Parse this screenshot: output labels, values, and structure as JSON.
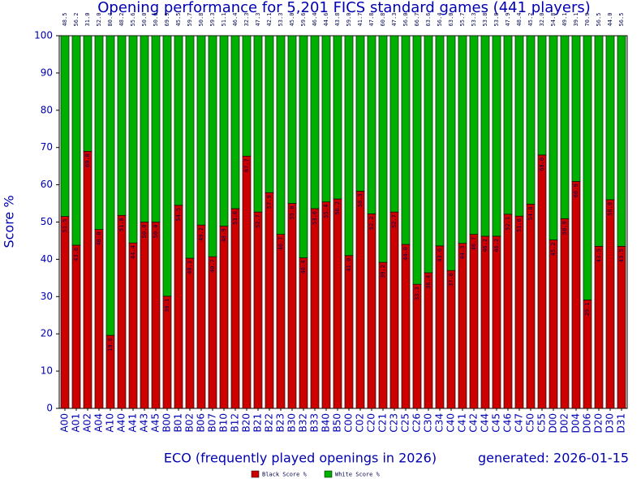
{
  "chart_data": {
    "type": "stacked_bar",
    "title": "Opening performance for 5,201 FICS standard games (441 players)",
    "y_label": "Score %",
    "x_label": "ECO (frequently played openings in 2026)",
    "note": "generated: 2026-01-15",
    "categories": [
      "A00",
      "A01",
      "A02",
      "A04",
      "A10",
      "A40",
      "A41",
      "A43",
      "A45",
      "B00",
      "B01",
      "B02",
      "B06",
      "B07",
      "B10",
      "B12",
      "B20",
      "B21",
      "B22",
      "B23",
      "B30",
      "B32",
      "B33",
      "B40",
      "B50",
      "C00",
      "C02",
      "C20",
      "C21",
      "C23",
      "C25",
      "C26",
      "C30",
      "C34",
      "C40",
      "C41",
      "C42",
      "C44",
      "C45",
      "C46",
      "C47",
      "C50",
      "C55",
      "D00",
      "D02",
      "D04",
      "D06",
      "D20",
      "D30",
      "D31"
    ],
    "series": [
      {
        "name": "Black Score %",
        "color": "#cc0000",
        "values": [
          51.5,
          43.8,
          69.0,
          48.0,
          19.6,
          51.8,
          44.4,
          50.0,
          50.0,
          30.1,
          54.5,
          40.3,
          49.2,
          40.7,
          48.9,
          53.6,
          67.7,
          52.7,
          57.9,
          46.7,
          55.0,
          40.4,
          53.6,
          55.4,
          56.2,
          41.0,
          58.3,
          52.2,
          39.2,
          52.7,
          44.0,
          33.3,
          36.4,
          43.6,
          37.0,
          44.3,
          46.7,
          46.2,
          46.2,
          52.1,
          51.6,
          54.8,
          68.0,
          45.2,
          50.9,
          60.9,
          29.1,
          43.5,
          56.0,
          43.5
        ],
        "value_labels": [
          "51.5",
          "43.8",
          "69.0",
          "48.0",
          "19.6",
          "51.8",
          "44.4",
          "50.0",
          "50.0",
          "30.1",
          "54.5",
          "40.3",
          "49.2",
          "40.7",
          "48.9",
          "53.6",
          "67.7",
          "52.7",
          "57.9",
          "46.7",
          "55.0",
          "40.4",
          "53.6",
          "55.4",
          "56.2",
          "41.0",
          "58.3",
          "52.2",
          "39.2",
          "52.7",
          "44.0",
          "33.3",
          "36.4",
          "43.6",
          "37.0",
          "44.3",
          "46.7",
          "46.2",
          "46.2",
          "52.1",
          "51.6",
          "54.8",
          "68.0",
          "45.2",
          "50.9",
          "60.9",
          "29.1",
          "43.5",
          "56.0",
          "43.5"
        ]
      },
      {
        "name": "White Score %",
        "color": "#00b000",
        "values": [
          48.5,
          56.2,
          31.0,
          52.0,
          80.4,
          48.2,
          55.6,
          50.0,
          50.0,
          69.9,
          45.5,
          59.7,
          50.8,
          59.3,
          51.1,
          46.4,
          32.3,
          47.3,
          42.1,
          53.3,
          45.0,
          59.6,
          46.4,
          44.6,
          43.8,
          59.0,
          41.7,
          47.8,
          60.8,
          47.3,
          56.0,
          66.7,
          63.6,
          56.4,
          63.0,
          55.7,
          53.3,
          53.8,
          53.8,
          47.9,
          48.4,
          45.2,
          32.0,
          54.8,
          49.1,
          39.1,
          70.9,
          56.5,
          44.0,
          56.5
        ],
        "value_labels": [
          "48.5",
          "56.2",
          "31.0",
          "52.0",
          "80.4",
          "48.2",
          "55.6",
          "50.0",
          "50.0",
          "69.9",
          "45.5",
          "59.7",
          "50.8",
          "59.3",
          "51.1",
          "46.4",
          "32.3",
          "47.3",
          "42.1",
          "53.3",
          "45.0",
          "59.6",
          "46.4",
          "44.6",
          "43.8",
          "59.0",
          "41.7",
          "47.8",
          "60.8",
          "47.3",
          "56.0",
          "66.7",
          "63.6",
          "56.4",
          "63.0",
          "55.7",
          "53.3",
          "53.8",
          "53.8",
          "47.9",
          "48.4",
          "45.2",
          "32.0",
          "54.8",
          "49.1",
          "39.1",
          "70.9",
          "56.5",
          "44.0",
          "56.5"
        ]
      }
    ],
    "ylim": [
      0,
      100
    ],
    "yticks": [
      0,
      10,
      20,
      30,
      40,
      50,
      60,
      70,
      80,
      90,
      100
    ]
  }
}
